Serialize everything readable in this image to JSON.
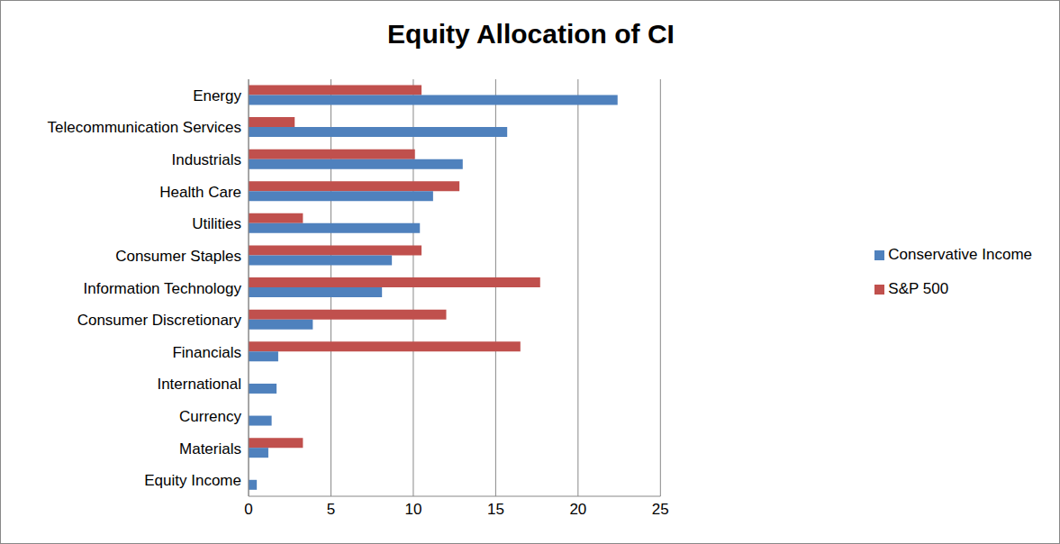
{
  "chart_data": {
    "type": "bar",
    "title": "Equity Allocation of CI",
    "orientation": "horizontal",
    "grid": true,
    "legend": "right",
    "categories": [
      "Energy",
      "Telecommunication Services",
      "Industrials",
      "Health Care",
      "Utilities",
      "Consumer Staples",
      "Information Technology",
      "Consumer Discretionary",
      "Financials",
      "International",
      "Currency",
      "Materials",
      "Equity Income"
    ],
    "series": [
      {
        "name": "S&P 500",
        "color": "#c0504d",
        "values": [
          10.5,
          2.8,
          10.1,
          12.8,
          3.3,
          10.5,
          17.7,
          12.0,
          16.5,
          null,
          null,
          3.3,
          null
        ]
      },
      {
        "name": "Conservative Income",
        "color": "#4f81bd",
        "values": [
          22.4,
          15.7,
          13.0,
          11.2,
          10.4,
          8.7,
          8.1,
          3.9,
          1.8,
          1.7,
          1.4,
          1.2,
          0.5
        ]
      }
    ],
    "xlim": [
      0,
      25
    ],
    "xticks": [
      0,
      5,
      10,
      15,
      20,
      25
    ]
  }
}
